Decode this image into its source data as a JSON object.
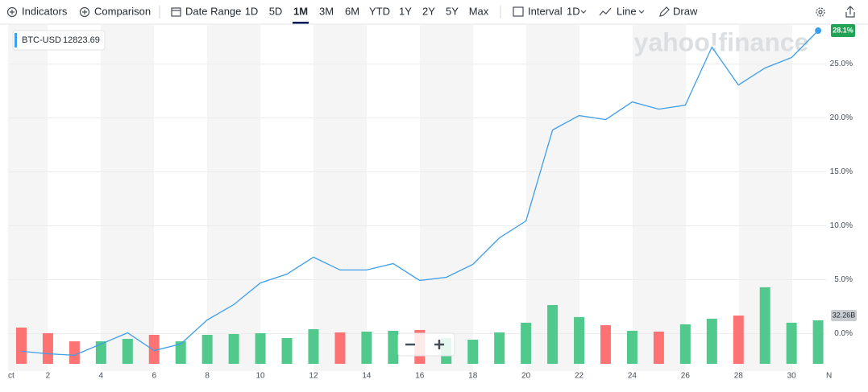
{
  "toolbar": {
    "indicators": "Indicators",
    "comparison": "Comparison",
    "date_range": "Date Range",
    "ranges": [
      "1D",
      "5D",
      "1M",
      "3M",
      "6M",
      "YTD",
      "1Y",
      "2Y",
      "5Y",
      "Max"
    ],
    "active_range": "1M",
    "interval": "Interval",
    "interval_value": "1D",
    "chart_style": "Line",
    "draw": "Draw"
  },
  "chart_data": {
    "type": "line",
    "watermark": "yahoo!finance",
    "legend": {
      "symbol": "BTC-USD",
      "price": "12823.69"
    },
    "x": [
      1,
      2,
      3,
      4,
      5,
      6,
      7,
      8,
      9,
      10,
      11,
      12,
      13,
      14,
      15,
      16,
      17,
      18,
      19,
      20,
      21,
      22,
      23,
      24,
      25,
      26,
      27,
      28,
      29,
      30,
      31
    ],
    "xlim": [
      0.5,
      31.3
    ],
    "xticks": [
      2,
      4,
      6,
      8,
      10,
      12,
      14,
      16,
      18,
      20,
      22,
      24,
      26,
      28,
      30
    ],
    "x_edge_labels": [
      "ct",
      "N"
    ],
    "series": [
      {
        "name": "BTC-USD",
        "color": "#3d9ee9",
        "values": [
          -1.64,
          -1.87,
          -2.01,
          -0.97,
          0.07,
          -1.57,
          -0.97,
          1.27,
          2.69,
          4.7,
          5.52,
          7.09,
          5.9,
          5.9,
          6.49,
          4.93,
          5.22,
          6.42,
          8.88,
          10.45,
          18.88,
          20.22,
          19.85,
          21.49,
          20.82,
          21.19,
          26.57,
          23.06,
          24.63,
          25.6,
          28.1
        ],
        "last_label": "28.1%"
      }
    ],
    "ylim": [
      -3.4,
      28.7
    ],
    "yticks": [
      {
        "value": 0,
        "label": "0.0%"
      },
      {
        "value": 5,
        "label": "5.0%"
      },
      {
        "value": 10,
        "label": "10.0%"
      },
      {
        "value": 15,
        "label": "15.0%"
      },
      {
        "value": 20,
        "label": "20.0%"
      },
      {
        "value": 25,
        "label": "25.0%"
      }
    ],
    "grid": true,
    "volume": {
      "vlim": [
        0,
        252
      ],
      "values": [
        26.9,
        22.7,
        16.7,
        16.7,
        18.5,
        21.5,
        16.7,
        21.5,
        22.1,
        22.7,
        19.1,
        25.7,
        23.3,
        23.9,
        24.5,
        25.1,
        19.1,
        17.9,
        23.3,
        30.5,
        43.6,
        34.7,
        28.7,
        24.5,
        23.9,
        29.3,
        33.5,
        35.8,
        56.8,
        30.5,
        32.26
      ],
      "colors": [
        "#fd7373",
        "#fd7373",
        "#fd7373",
        "#52c98c",
        "#52c98c",
        "#fd7373",
        "#52c98c",
        "#52c98c",
        "#52c98c",
        "#52c98c",
        "#52c98c",
        "#52c98c",
        "#fd7373",
        "#52c98c",
        "#52c98c",
        "#fd7373",
        "#52c98c",
        "#52c98c",
        "#52c98c",
        "#52c98c",
        "#52c98c",
        "#52c98c",
        "#fd7373",
        "#52c98c",
        "#fd7373",
        "#52c98c",
        "#52c98c",
        "#fd7373",
        "#52c98c",
        "#52c98c",
        "#52c98c"
      ],
      "last_label": "32.26B"
    }
  }
}
